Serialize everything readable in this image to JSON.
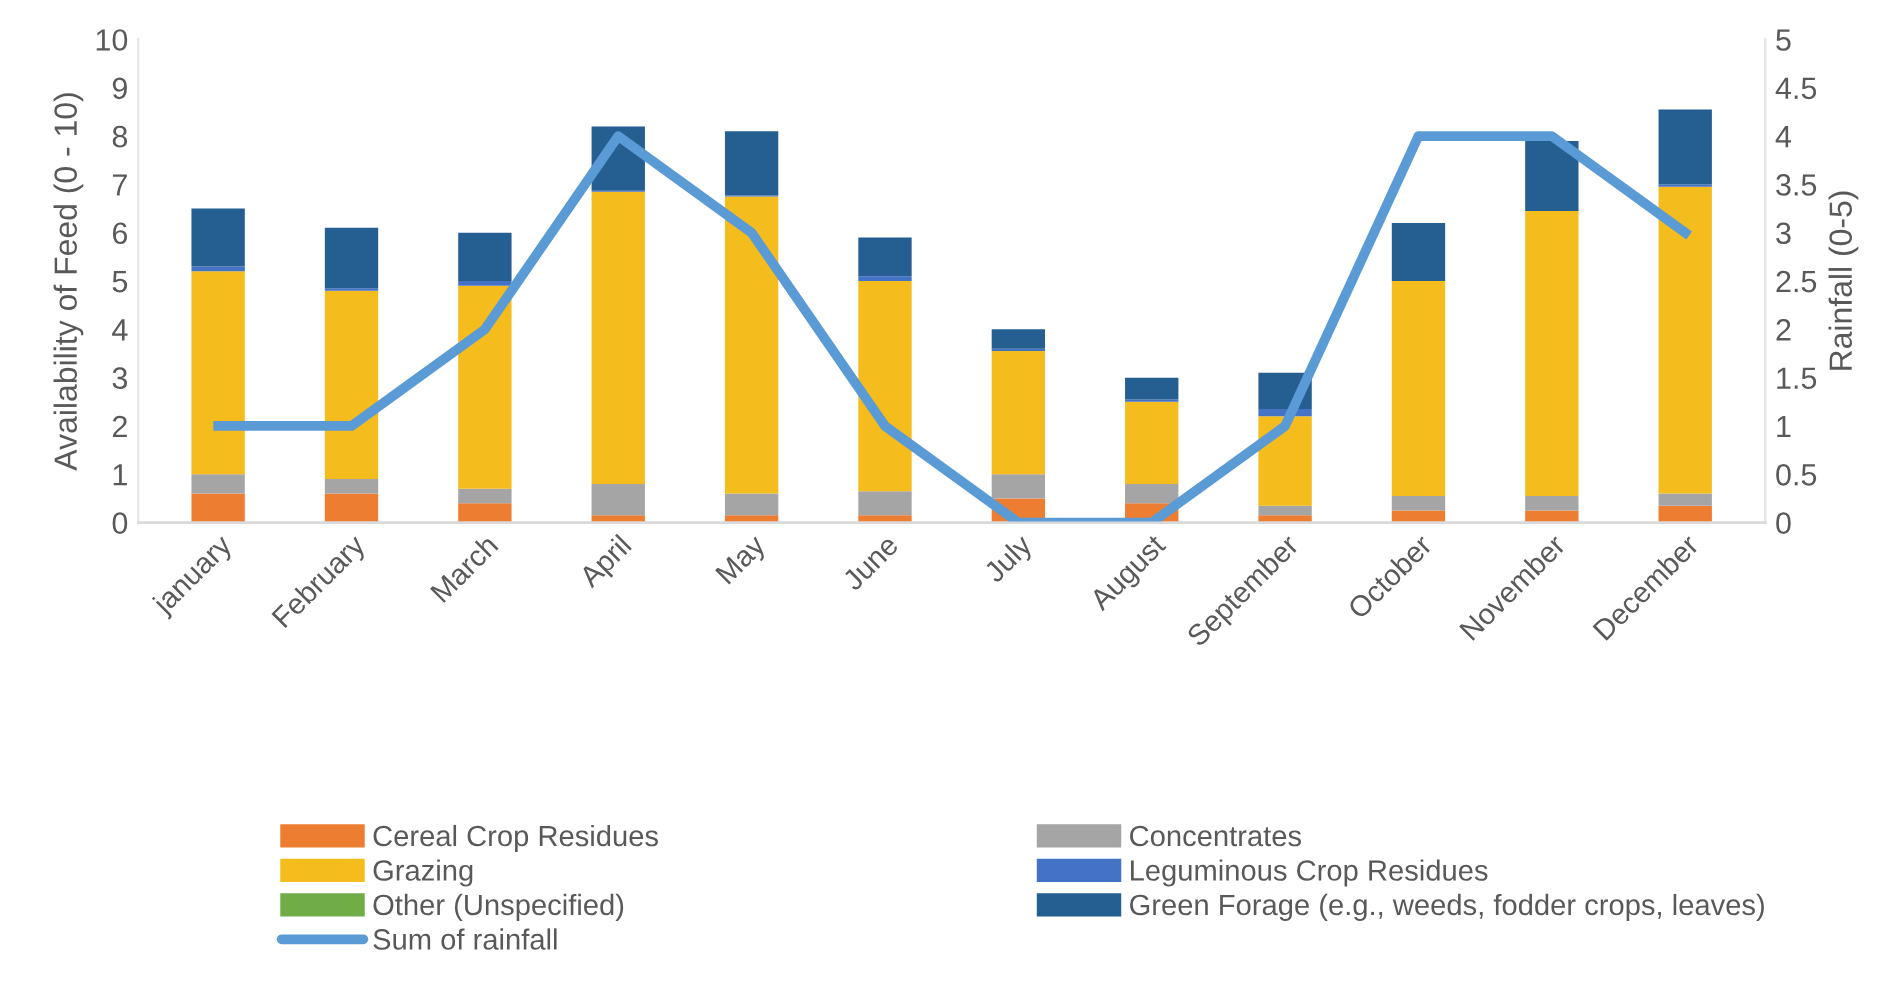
{
  "chart_data": {
    "type": "bar",
    "stacked": true,
    "ylabel": "Availability of Feed (0 - 10)",
    "y2label": "Rainfall (0-5)",
    "categories": [
      "january",
      "February",
      "March",
      "April",
      "May",
      "June",
      "July",
      "August",
      "September",
      "October",
      "November",
      "December"
    ],
    "series": [
      {
        "name": "Cereal Crop Residues",
        "color": "#ed7d31",
        "values": [
          0.6,
          0.6,
          0.4,
          0.15,
          0.15,
          0.15,
          0.5,
          0.4,
          0.15,
          0.25,
          0.25,
          0.35
        ]
      },
      {
        "name": "Concentrates",
        "color": "#a5a5a5",
        "values": [
          0.4,
          0.3,
          0.3,
          0.65,
          0.45,
          0.5,
          0.5,
          0.4,
          0.2,
          0.3,
          0.3,
          0.25
        ]
      },
      {
        "name": "Grazing",
        "color": "#f5bc1d",
        "values": [
          4.2,
          3.9,
          4.2,
          6.05,
          6.15,
          4.35,
          2.55,
          1.7,
          1.85,
          4.45,
          5.9,
          6.35
        ]
      },
      {
        "name": "Leguminous Crop Residues",
        "color": "#4472c4",
        "values": [
          0.1,
          0.05,
          0.1,
          0.02,
          0.02,
          0.1,
          0.05,
          0.05,
          0.15,
          0,
          0,
          0.05
        ]
      },
      {
        "name": "Other (Unspecified)",
        "color": "#70ad47",
        "values": [
          0,
          0,
          0,
          0,
          0,
          0,
          0,
          0,
          0,
          0,
          0,
          0
        ]
      },
      {
        "name": "Green Forage (e.g., weeds, fodder crops, leaves)",
        "color": "#255e91",
        "values": [
          1.2,
          1.25,
          1.0,
          1.33,
          1.33,
          0.8,
          0.4,
          0.45,
          0.75,
          1.2,
          1.45,
          1.55
        ]
      },
      {
        "name": "Sum of rainfall",
        "type": "line",
        "axis": "y2",
        "color": "#5b9bd5",
        "values": [
          1,
          1,
          2,
          4,
          3,
          1,
          0,
          0,
          1,
          4,
          4,
          3
        ]
      }
    ],
    "ylim": [
      0,
      10
    ],
    "yticks": [
      0,
      1,
      2,
      3,
      4,
      5,
      6,
      7,
      8,
      9,
      10
    ],
    "y2lim": [
      0,
      5
    ],
    "y2ticks": [
      0,
      0.5,
      1,
      1.5,
      2,
      2.5,
      3,
      3.5,
      4,
      4.5,
      5
    ],
    "grid": false,
    "legend": "bottom",
    "marker": "none",
    "line_style": "solid"
  }
}
